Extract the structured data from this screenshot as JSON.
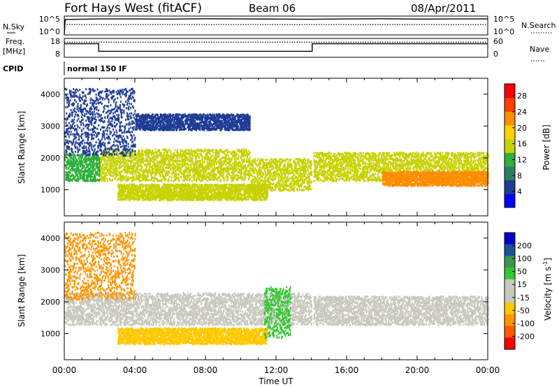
{
  "header": {
    "station": "Fort Hays West (fitACF)",
    "beam": "Beam 06",
    "date": "08/Apr/2011"
  },
  "panels": {
    "nsky": {
      "left_label": "N.Sky",
      "right_label": "N.Search",
      "left_ticks": [
        "10^5",
        "10^0"
      ],
      "right_ticks": [
        "10^5",
        "10^0"
      ]
    },
    "freq": {
      "left_label_1": "Freq.",
      "left_label_2": "[MHz]",
      "right_label": "Nave",
      "left_ticks": [
        "18",
        "8"
      ],
      "right_ticks": [
        "60",
        "0"
      ]
    },
    "cpid": {
      "label": "CPID",
      "mode": "normal 150 IF"
    }
  },
  "colors": {
    "power_scale": [
      "#0000ff",
      "#1e3c96",
      "#2e7d60",
      "#2faf3c",
      "#c8d200",
      "#ffd200",
      "#ff8c00",
      "#ff4000",
      "#ff0000"
    ],
    "velocity_scale": [
      "#ff0000",
      "#ff5a00",
      "#ff9600",
      "#ffc800",
      "#c8c8be",
      "#c8c8be",
      "#32c832",
      "#3c9650",
      "#1e5096",
      "#0000c8"
    ],
    "ground_scatter": "#c8c8be"
  },
  "chart_data": [
    {
      "type": "line",
      "name": "nsky-search-noise",
      "xlabel": "",
      "ylabel": "N.Sky",
      "x_range_hours": [
        0,
        24
      ],
      "series": [
        {
          "name": "N.Sky",
          "style": "solid",
          "x": [
            0,
            0.05,
            2,
            4,
            6,
            8,
            10,
            12,
            14,
            16,
            18,
            20,
            22,
            24
          ],
          "y_frac": [
            0.05,
            0.82,
            0.85,
            0.85,
            0.84,
            0.86,
            0.85,
            0.84,
            0.83,
            0.85,
            0.86,
            0.84,
            0.85,
            0.85
          ]
        },
        {
          "name": "N.Search",
          "style": "dotted",
          "x": [
            0,
            24
          ],
          "y_frac": [
            0.55,
            0.55
          ]
        }
      ]
    },
    {
      "type": "line",
      "name": "frequency-nave",
      "xlabel": "",
      "ylabel": "Freq. [MHz]",
      "ylim": [
        8,
        18
      ],
      "x_range_hours": [
        0,
        24
      ],
      "series": [
        {
          "name": "Freq",
          "style": "solid",
          "x": [
            0,
            1.95,
            1.95,
            14.05,
            14.05,
            24
          ],
          "y": [
            15.2,
            15.2,
            11.2,
            11.2,
            15.2,
            15.2
          ]
        },
        {
          "name": "Nave",
          "style": "dotted",
          "x": [
            0,
            24
          ],
          "y": [
            16.0,
            16.0
          ]
        }
      ]
    },
    {
      "type": "heatmap",
      "name": "power-range-time",
      "ylabel": "Slant Range [km]",
      "xlabel": "",
      "xlim_hours": [
        0,
        24
      ],
      "ylim": [
        180,
        4500
      ],
      "yticks": [
        1000,
        2000,
        3000,
        4000
      ],
      "colorbar": {
        "label": "Power [dB]",
        "ticks": [
          4,
          8,
          12,
          16,
          20,
          24,
          28
        ],
        "range": [
          0,
          31
        ]
      },
      "scatter_regions": [
        {
          "t0": 0,
          "t1": 2,
          "r_lo": 1300,
          "r_hi": 2150,
          "v": 13
        },
        {
          "t0": 2,
          "t1": 10.5,
          "r_lo": 1300,
          "r_hi": 2300,
          "v": 14
        },
        {
          "t0": 10.5,
          "t1": 14,
          "r_lo": 1000,
          "r_hi": 2000,
          "v": 16
        },
        {
          "t0": 3,
          "t1": 11.5,
          "r_lo": 700,
          "r_hi": 1200,
          "v": 15
        },
        {
          "t0": 0,
          "t1": 4,
          "r_lo": 2100,
          "r_hi": 4200,
          "v": 6
        },
        {
          "t0": 4,
          "t1": 10.5,
          "r_lo": 2900,
          "r_hi": 3400,
          "v": 6
        },
        {
          "t0": 14.1,
          "t1": 24,
          "r_lo": 1300,
          "r_hi": 2200,
          "v": 16
        },
        {
          "t0": 18,
          "t1": 24,
          "r_lo": 1150,
          "r_hi": 1600,
          "v": 24
        }
      ]
    },
    {
      "type": "heatmap",
      "name": "velocity-range-time",
      "ylabel": "Slant Range [km]",
      "xlabel": "Time UT",
      "xlim_hours": [
        0,
        24
      ],
      "xtick_labels": [
        "00:00",
        "04:00",
        "08:00",
        "12:00",
        "16:00",
        "20:00",
        "00:00"
      ],
      "ylim": [
        180,
        4500
      ],
      "yticks": [
        1000,
        2000,
        3000,
        4000
      ],
      "colorbar": {
        "label_main": "Velocity [m s",
        "label_sup": "-1",
        "label_end": "]",
        "ticks": [
          "200",
          "100",
          "50",
          "15",
          "-15",
          "-50",
          "-100",
          "-200"
        ]
      },
      "scatter_regions": [
        {
          "t0": 0,
          "t1": 14,
          "r_lo": 1300,
          "r_hi": 2300,
          "v": "ground"
        },
        {
          "t0": 14.1,
          "t1": 24,
          "r_lo": 1300,
          "r_hi": 2200,
          "v": "ground"
        },
        {
          "t0": 3,
          "t1": 11.5,
          "r_lo": 700,
          "r_hi": 1200,
          "v": -40
        },
        {
          "t0": 11.3,
          "t1": 12.8,
          "r_lo": 900,
          "r_hi": 2500,
          "v": 30
        },
        {
          "t0": 0,
          "t1": 4,
          "r_lo": 2100,
          "r_hi": 4200,
          "v": -60
        }
      ]
    }
  ]
}
